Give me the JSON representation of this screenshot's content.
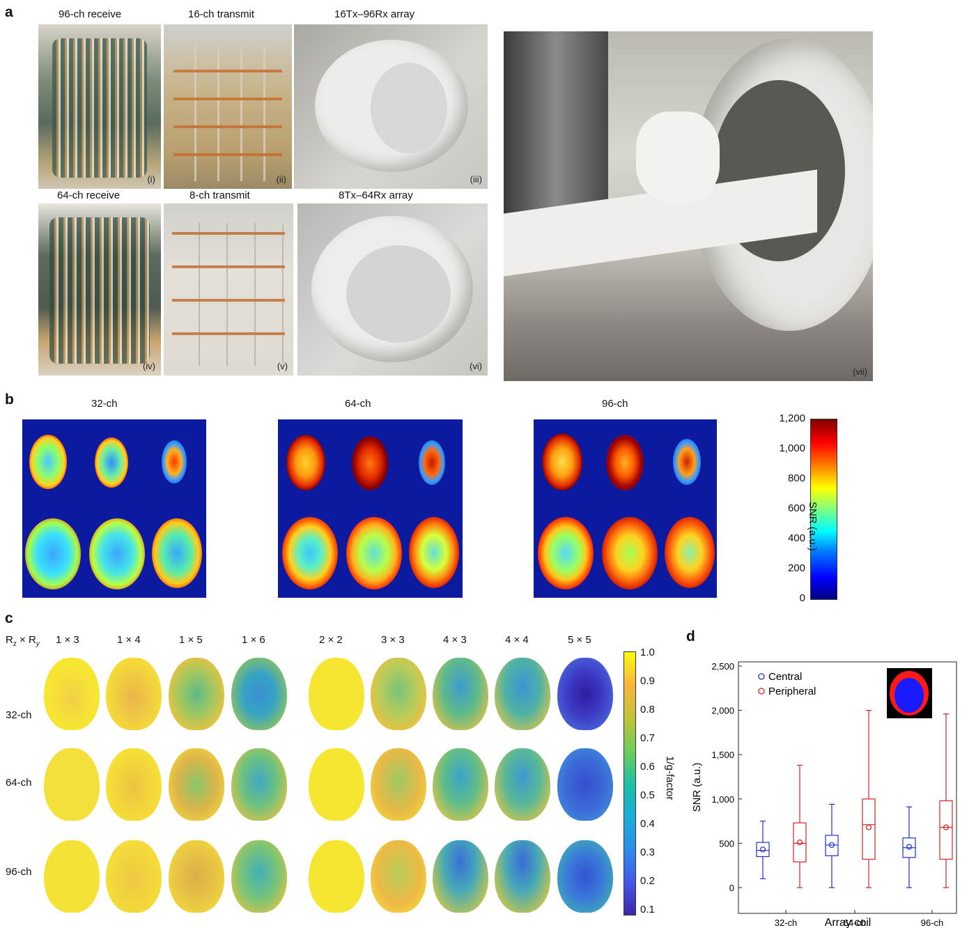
{
  "panels": {
    "a": "a",
    "b": "b",
    "c": "c",
    "d": "d"
  },
  "a": {
    "titles": [
      "96-ch receive",
      "16-ch transmit",
      "16Tx–96Rx array",
      "64-ch receive",
      "8-ch transmit",
      "8Tx–64Rx array"
    ],
    "roman": [
      "(i)",
      "(ii)",
      "(iii)",
      "(iv)",
      "(v)",
      "(vi)",
      "(vii)"
    ]
  },
  "b": {
    "titles": [
      "32-ch",
      "64-ch",
      "96-ch"
    ],
    "colorbar": {
      "label": "SNR (a.u.)",
      "ticks": [
        "1,200",
        "1,000",
        "800",
        "600",
        "400",
        "200",
        "0"
      ]
    }
  },
  "c": {
    "header_label_main": "R",
    "header_sub_z": "z",
    "header_x": " × R",
    "header_sub_y": "y",
    "columns": [
      "1 × 3",
      "1 × 4",
      "1 × 5",
      "1 × 6",
      "2 × 2",
      "3 × 3",
      "4 × 3",
      "4 × 4",
      "5 × 5"
    ],
    "rows": [
      "32-ch",
      "64-ch",
      "96-ch"
    ],
    "colorbar": {
      "label": "1/g-factor",
      "ticks": [
        "1.0",
        "0.9",
        "0.8",
        "0.7",
        "0.6",
        "0.5",
        "0.4",
        "0.3",
        "0.2",
        "0.1"
      ]
    },
    "colors": {
      "yellow": "#f7e631",
      "orange": "#f0b443",
      "green": "#6ec17a",
      "blue": "#3b8fd4",
      "deep": "#3d2bb3"
    }
  },
  "chart_data": {
    "type": "box",
    "xlabel": "Array coil",
    "ylabel": "SNR (a.u.)",
    "categories": [
      "32-ch",
      "64-ch",
      "96-ch"
    ],
    "yticks": [
      "0",
      "500",
      "1,000",
      "1,500",
      "2,000",
      "2,500"
    ],
    "ylim": [
      0,
      2500
    ],
    "legend_position": "top-left",
    "series": [
      {
        "name": "Central",
        "color": "#1f2fd6",
        "boxes": [
          {
            "min": 100,
            "q1": 350,
            "median": 420,
            "q3": 510,
            "max": 750,
            "mean": 430
          },
          {
            "min": 0,
            "q1": 360,
            "median": 480,
            "q3": 590,
            "max": 940,
            "mean": 480
          },
          {
            "min": 0,
            "q1": 340,
            "median": 450,
            "q3": 560,
            "max": 910,
            "mean": 460
          }
        ]
      },
      {
        "name": "Peripheral",
        "color": "#e02020",
        "boxes": [
          {
            "min": 0,
            "q1": 290,
            "median": 500,
            "q3": 730,
            "max": 1380,
            "mean": 510
          },
          {
            "min": 0,
            "q1": 320,
            "median": 710,
            "q3": 1000,
            "max": 2000,
            "mean": 680
          },
          {
            "min": 0,
            "q1": 320,
            "median": 680,
            "q3": 980,
            "max": 1960,
            "mean": 680
          }
        ]
      }
    ]
  }
}
